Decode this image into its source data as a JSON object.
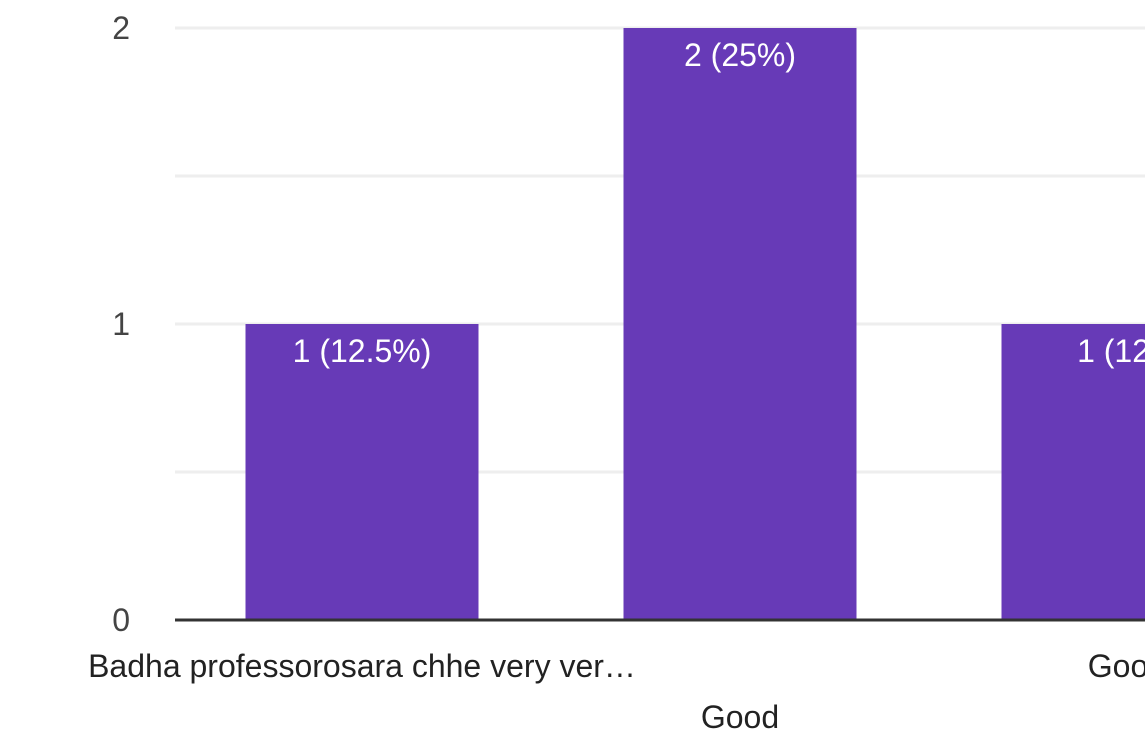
{
  "chart_data": {
    "type": "bar",
    "title": "",
    "xlabel": "",
    "ylabel": "",
    "categories": [
      "Badha professorosara chhe very ver…",
      "Good",
      "Goo"
    ],
    "values": [
      1,
      2,
      1
    ],
    "data_labels": [
      "1 (12.5%)",
      "2 (25%)",
      "1 (12."
    ],
    "ylim": [
      0,
      2
    ],
    "yticks": [
      0,
      1,
      2
    ],
    "grid": true,
    "legend": "none",
    "colors": {
      "bar": "#673AB7",
      "grid": "#EEEEEE",
      "axis": "#333333"
    }
  }
}
